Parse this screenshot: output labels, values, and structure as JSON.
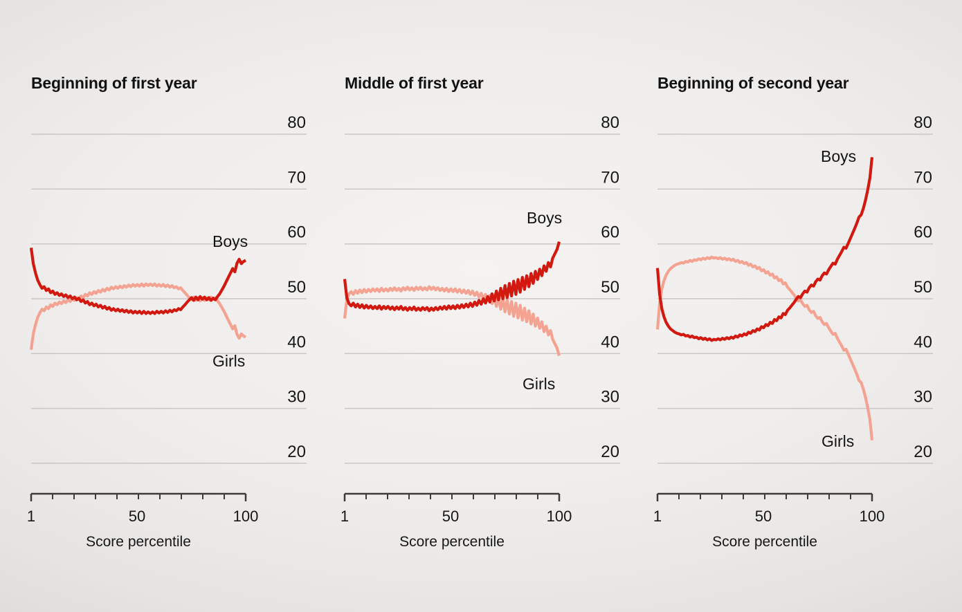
{
  "figure": {
    "description": "Three small-multiple line charts of percent boys vs girls by score percentile",
    "x_axis_label": "Score percentile"
  },
  "colors": {
    "boys_line": "#d1190f",
    "girls_line": "#f4a392",
    "gridline": "#c9c6c4",
    "axis": "#3d3a38",
    "text": "#161616"
  },
  "chart_data": [
    {
      "type": "line",
      "title": "Beginning of first year",
      "xlabel": "Score percentile",
      "x_start": 1,
      "x_end": 100,
      "x_step": 1,
      "x_ticks": [
        1,
        50,
        100
      ],
      "y_ticks": [
        80,
        70,
        60,
        50,
        40,
        30,
        20
      ],
      "ylim": [
        20,
        80
      ],
      "grid": true,
      "legend": "inline labels",
      "series": [
        {
          "name": "Boys",
          "color": "#d1190f",
          "values": [
            59.3,
            56.4,
            54.7,
            53.4,
            52.6,
            51.9,
            52.2,
            51.5,
            51.8,
            51.1,
            51.4,
            50.8,
            51.1,
            50.6,
            50.9,
            50.4,
            50.7,
            50.2,
            50.5,
            50.0,
            50.3,
            49.8,
            50.1,
            49.5,
            49.8,
            49.2,
            49.5,
            48.9,
            49.2,
            48.7,
            49.0,
            48.5,
            48.8,
            48.3,
            48.6,
            48.1,
            48.4,
            47.9,
            48.2,
            47.8,
            48.1,
            47.7,
            48.0,
            47.6,
            47.9,
            47.5,
            47.8,
            47.4,
            47.7,
            47.4,
            47.7,
            47.3,
            47.7,
            47.3,
            47.6,
            47.3,
            47.6,
            47.3,
            47.7,
            47.4,
            47.7,
            47.4,
            47.8,
            47.5,
            47.9,
            47.6,
            48.0,
            47.8,
            48.2,
            48.0,
            48.5,
            48.9,
            49.4,
            49.8,
            50.2,
            49.7,
            50.3,
            49.8,
            50.4,
            49.9,
            50.3,
            49.8,
            50.2,
            49.7,
            50.1,
            49.8,
            50.4,
            50.9,
            51.6,
            52.3,
            53.1,
            53.9,
            54.7,
            55.5,
            54.9,
            56.5,
            57.2,
            56.4,
            56.8,
            57.0
          ]
        },
        {
          "name": "Girls",
          "color": "#f4a392",
          "values": [
            40.7,
            43.6,
            45.3,
            46.6,
            47.4,
            48.1,
            47.8,
            48.5,
            48.2,
            48.9,
            48.6,
            49.2,
            48.9,
            49.4,
            49.1,
            49.6,
            49.3,
            49.8,
            49.5,
            50.0,
            49.7,
            50.2,
            49.9,
            50.5,
            50.2,
            50.8,
            50.5,
            51.1,
            50.8,
            51.3,
            51.0,
            51.5,
            51.2,
            51.7,
            51.4,
            51.9,
            51.6,
            52.1,
            51.8,
            52.2,
            51.9,
            52.3,
            52.0,
            52.4,
            52.1,
            52.5,
            52.2,
            52.6,
            52.3,
            52.6,
            52.3,
            52.7,
            52.3,
            52.7,
            52.4,
            52.7,
            52.4,
            52.7,
            52.3,
            52.6,
            52.3,
            52.6,
            52.2,
            52.5,
            52.1,
            52.4,
            52.0,
            52.2,
            51.8,
            52.0,
            51.5,
            51.1,
            50.6,
            50.2,
            49.8,
            50.3,
            49.7,
            50.2,
            49.6,
            50.1,
            49.7,
            50.2,
            49.8,
            50.3,
            49.9,
            50.2,
            49.6,
            49.1,
            48.4,
            47.7,
            46.9,
            46.1,
            45.3,
            44.5,
            45.1,
            43.5,
            42.8,
            43.6,
            43.2,
            43.0
          ]
        }
      ]
    },
    {
      "type": "line",
      "title": "Middle of first year",
      "xlabel": "Score percentile",
      "x_start": 1,
      "x_end": 100,
      "x_step": 1,
      "x_ticks": [
        1,
        50,
        100
      ],
      "y_ticks": [
        80,
        70,
        60,
        50,
        40,
        30,
        20
      ],
      "ylim": [
        20,
        80
      ],
      "grid": true,
      "legend": "inline labels",
      "series": [
        {
          "name": "Boys",
          "color": "#d1190f",
          "values": [
            53.6,
            50.2,
            49.1,
            48.7,
            49.2,
            48.5,
            49.0,
            48.4,
            48.9,
            48.3,
            48.8,
            48.3,
            48.7,
            48.2,
            48.6,
            48.2,
            48.7,
            48.1,
            48.6,
            48.2,
            48.6,
            48.1,
            48.5,
            48.0,
            48.5,
            48.1,
            48.6,
            48.0,
            48.4,
            47.9,
            48.4,
            48.0,
            48.5,
            47.9,
            48.3,
            47.9,
            48.4,
            48.0,
            48.4,
            47.8,
            48.3,
            47.9,
            48.4,
            48.0,
            48.5,
            48.1,
            48.6,
            48.1,
            48.7,
            48.2,
            48.7,
            48.2,
            48.8,
            48.3,
            48.9,
            48.4,
            49.0,
            48.5,
            49.2,
            48.6,
            49.4,
            48.8,
            49.7,
            49.0,
            50.0,
            49.2,
            50.4,
            49.4,
            50.9,
            49.6,
            51.4,
            49.8,
            51.9,
            50.0,
            52.4,
            50.2,
            52.8,
            50.5,
            53.2,
            50.8,
            53.5,
            51.2,
            53.9,
            51.7,
            54.2,
            52.2,
            54.6,
            52.8,
            55.0,
            53.5,
            55.4,
            54.2,
            56.0,
            55.0,
            56.6,
            55.8,
            57.4,
            58.2,
            59.0,
            60.4
          ]
        },
        {
          "name": "Girls",
          "color": "#f4a392",
          "values": [
            46.4,
            49.8,
            50.9,
            51.3,
            50.8,
            51.5,
            51.0,
            51.6,
            51.1,
            51.7,
            51.2,
            51.7,
            51.3,
            51.8,
            51.4,
            51.8,
            51.3,
            51.9,
            51.4,
            51.8,
            51.4,
            51.9,
            51.5,
            52.0,
            51.5,
            51.9,
            51.4,
            52.0,
            51.6,
            52.1,
            51.6,
            52.0,
            51.5,
            52.1,
            51.7,
            52.1,
            51.6,
            52.0,
            51.6,
            52.2,
            51.7,
            52.1,
            51.6,
            52.0,
            51.5,
            51.9,
            51.4,
            51.9,
            51.3,
            51.8,
            51.3,
            51.8,
            51.2,
            51.7,
            51.1,
            51.6,
            51.0,
            51.5,
            50.8,
            51.4,
            50.6,
            51.2,
            50.3,
            51.0,
            50.0,
            50.8,
            49.6,
            50.6,
            49.1,
            50.4,
            48.6,
            50.2,
            48.1,
            50.0,
            47.6,
            49.8,
            47.2,
            49.5,
            46.8,
            49.2,
            46.5,
            48.8,
            46.1,
            48.3,
            45.8,
            47.8,
            45.4,
            47.2,
            45.0,
            46.5,
            44.6,
            45.8,
            44.0,
            45.0,
            43.4,
            44.2,
            42.6,
            41.8,
            41.0,
            39.6
          ]
        }
      ]
    },
    {
      "type": "line",
      "title": "Beginning of second year",
      "xlabel": "Score percentile",
      "x_start": 1,
      "x_end": 100,
      "x_step": 1,
      "x_ticks": [
        1,
        50,
        100
      ],
      "y_ticks": [
        80,
        70,
        60,
        50,
        40,
        30,
        20
      ],
      "ylim": [
        20,
        80
      ],
      "grid": true,
      "legend": "inline labels",
      "series": [
        {
          "name": "Boys",
          "color": "#d1190f",
          "values": [
            55.6,
            50.8,
            48.2,
            46.7,
            45.7,
            45.0,
            44.5,
            44.2,
            43.9,
            43.7,
            43.6,
            43.4,
            43.5,
            43.2,
            43.3,
            43.0,
            43.2,
            42.9,
            43.0,
            42.7,
            42.9,
            42.6,
            42.8,
            42.5,
            42.7,
            42.4,
            42.6,
            42.5,
            42.7,
            42.5,
            42.8,
            42.6,
            42.9,
            42.7,
            43.0,
            42.8,
            43.2,
            43.0,
            43.4,
            43.2,
            43.6,
            43.4,
            43.9,
            43.7,
            44.2,
            44.0,
            44.5,
            44.3,
            44.9,
            44.7,
            45.3,
            45.1,
            45.7,
            45.5,
            46.2,
            46.0,
            46.7,
            46.5,
            47.3,
            47.1,
            47.9,
            48.3,
            48.8,
            49.3,
            49.9,
            50.4,
            50.2,
            50.9,
            51.4,
            51.2,
            52.0,
            52.5,
            52.3,
            53.1,
            53.6,
            53.4,
            54.2,
            54.7,
            54.5,
            55.3,
            55.9,
            56.5,
            56.3,
            57.2,
            57.9,
            58.6,
            59.4,
            59.2,
            60.1,
            61.0,
            61.9,
            62.8,
            63.8,
            64.9,
            65.3,
            66.5,
            68.0,
            69.8,
            72.0,
            75.8
          ]
        },
        {
          "name": "Girls",
          "color": "#f4a392",
          "values": [
            44.4,
            49.2,
            51.8,
            53.3,
            54.3,
            55.0,
            55.5,
            55.8,
            56.1,
            56.3,
            56.4,
            56.6,
            56.5,
            56.8,
            56.7,
            57.0,
            56.8,
            57.1,
            57.0,
            57.3,
            57.1,
            57.4,
            57.2,
            57.5,
            57.3,
            57.6,
            57.4,
            57.5,
            57.3,
            57.5,
            57.2,
            57.4,
            57.1,
            57.3,
            57.0,
            57.2,
            56.8,
            57.0,
            56.6,
            56.8,
            56.4,
            56.6,
            56.1,
            56.3,
            55.8,
            56.0,
            55.5,
            55.7,
            55.1,
            55.3,
            54.7,
            54.9,
            54.3,
            54.5,
            53.8,
            54.0,
            53.3,
            53.5,
            52.7,
            52.9,
            52.1,
            51.7,
            51.2,
            50.7,
            50.1,
            49.6,
            49.8,
            49.1,
            48.6,
            48.8,
            48.0,
            47.5,
            47.7,
            46.9,
            46.4,
            46.6,
            45.8,
            45.3,
            45.5,
            44.7,
            44.1,
            43.5,
            43.7,
            42.8,
            42.1,
            41.4,
            40.6,
            40.8,
            39.9,
            39.0,
            38.1,
            37.2,
            36.2,
            35.1,
            34.7,
            33.5,
            32.0,
            30.2,
            28.0,
            24.2
          ]
        }
      ]
    }
  ]
}
